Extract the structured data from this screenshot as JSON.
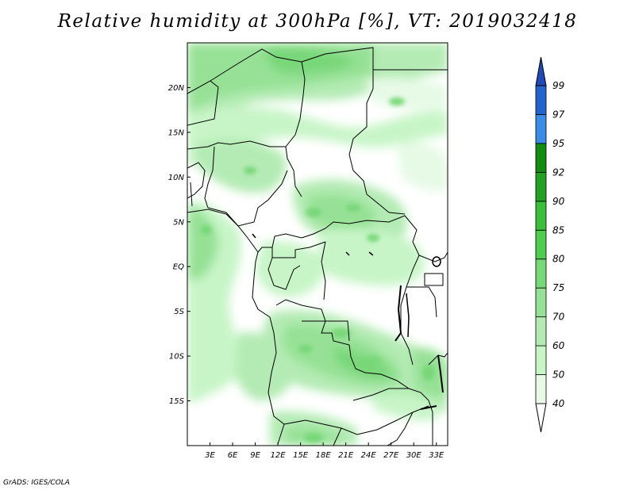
{
  "title": "Relative humidity at 300hPa [%], VT: 2019032418",
  "credit": "GrADS: IGES/COLA",
  "map": {
    "region": "Central Africa",
    "projection": "latlon",
    "lon_range": [
      0,
      34.5
    ],
    "lat_range": [
      -20,
      25
    ],
    "lon_ticks": [
      3,
      6,
      9,
      12,
      15,
      18,
      21,
      24,
      27,
      30,
      33
    ],
    "lon_tick_labels": [
      "3E",
      "6E",
      "9E",
      "12E",
      "15E",
      "18E",
      "21E",
      "24E",
      "27E",
      "30E",
      "33E"
    ],
    "lat_ticks": [
      20,
      15,
      10,
      5,
      0,
      -5,
      -10,
      -15
    ],
    "lat_tick_labels": [
      "20N",
      "15N",
      "10N",
      "5N",
      "EQ",
      "5S",
      "10S",
      "15S"
    ]
  },
  "colorbar": {
    "levels": [
      40,
      50,
      60,
      70,
      75,
      80,
      85,
      90,
      92,
      95,
      97,
      99
    ],
    "level_labels": [
      "40",
      "50",
      "60",
      "70",
      "75",
      "80",
      "85",
      "90",
      "92",
      "95",
      "97",
      "99"
    ],
    "colors": [
      "#ffffff",
      "#e6fae6",
      "#c8f5c8",
      "#b4ebb4",
      "#96e196",
      "#78d778",
      "#50cd50",
      "#3cbe3c",
      "#24a024",
      "#148c14",
      "#3c8ce6",
      "#2564cd",
      "#1f4bb4"
    ]
  }
}
